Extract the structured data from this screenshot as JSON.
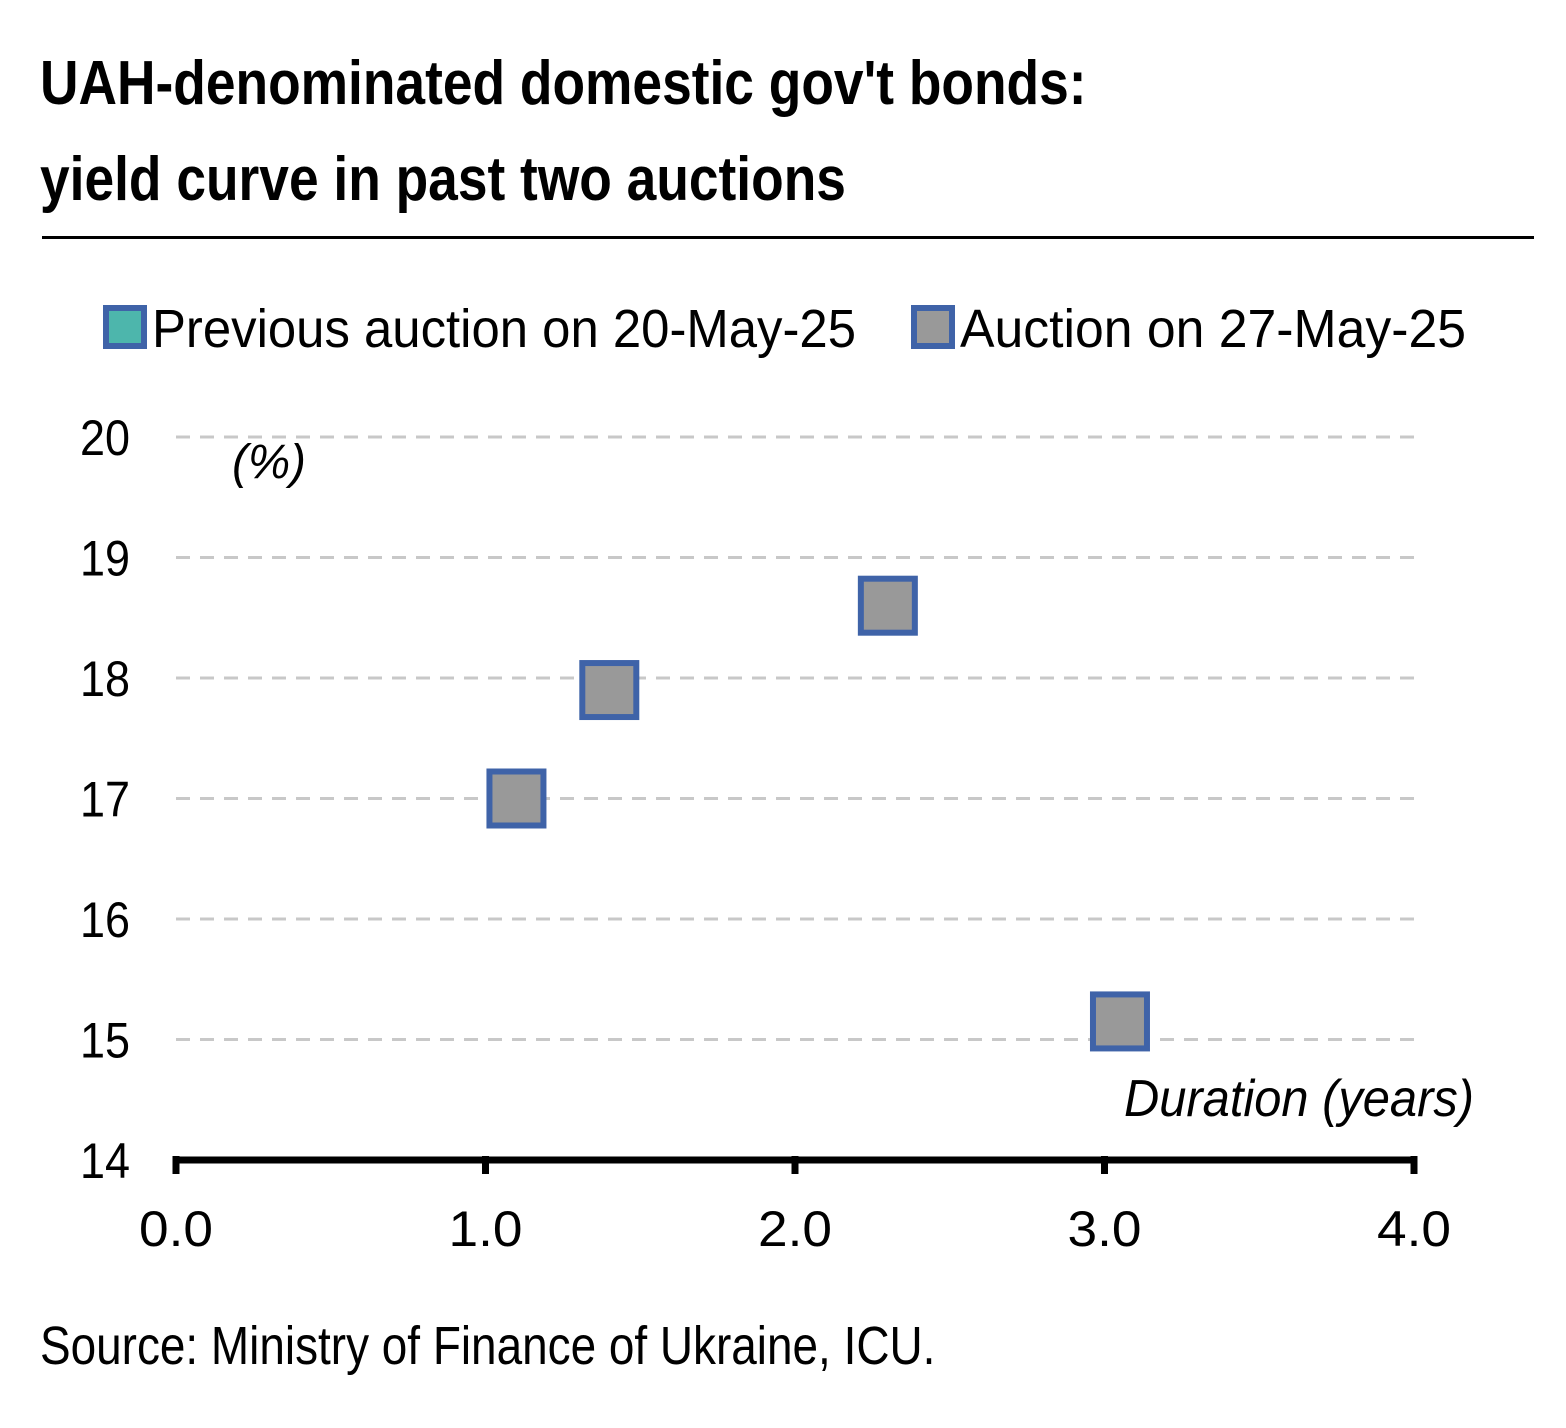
{
  "header": {
    "title_line1": "UAH-denominated domestic gov't bonds:",
    "title_line2": "yield curve in past two auctions"
  },
  "footer": {
    "source": "Source: Ministry of Finance of Ukraine, ICU."
  },
  "colors": {
    "previous_fill": "#4db6ac",
    "current_fill": "#999999",
    "marker_border": "#3f63a8",
    "gridline": "#c8c8c8",
    "axis": "#000000"
  },
  "chart_data": {
    "type": "scatter",
    "title": "UAH-denominated domestic gov't bonds: yield curve in past two auctions",
    "xlabel": "Duration (years)",
    "ylabel": "(%)",
    "xlim": [
      0,
      4
    ],
    "ylim": [
      14,
      20
    ],
    "x_ticks": [
      "0.0",
      "1.0",
      "2.0",
      "3.0",
      "4.0"
    ],
    "y_ticks": [
      "14",
      "15",
      "16",
      "17",
      "18",
      "19",
      "20"
    ],
    "grid": "horizontal dashed",
    "legend_position": "top",
    "series": [
      {
        "name": "Previous auction on 20-May-25",
        "marker": "square",
        "points": []
      },
      {
        "name": "Auction on 27-May-25",
        "marker": "square",
        "points": [
          {
            "x": 1.1,
            "y": 17.0
          },
          {
            "x": 1.4,
            "y": 17.9
          },
          {
            "x": 2.3,
            "y": 18.6
          },
          {
            "x": 3.05,
            "y": 15.15
          }
        ]
      }
    ]
  }
}
